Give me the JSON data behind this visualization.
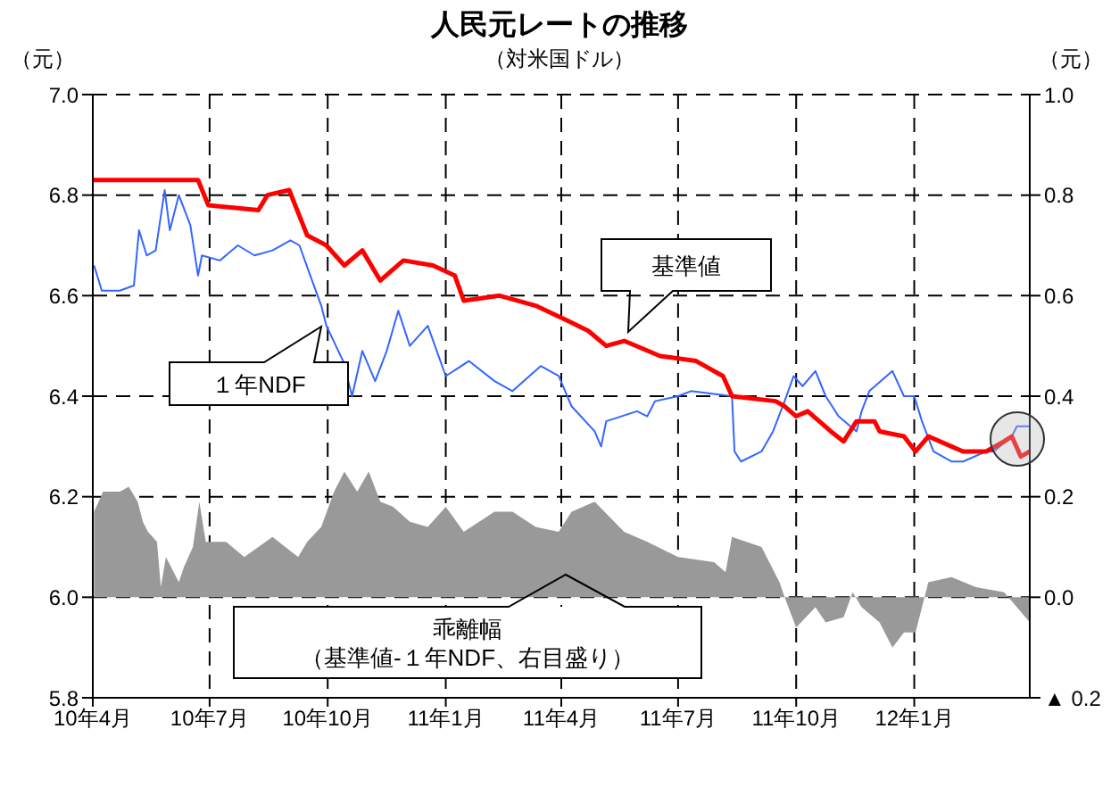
{
  "chart_data": {
    "type": "line",
    "title": "人民元レートの推移",
    "subtitle": "（対米国ドル）",
    "ylabel": "（元）",
    "y2label": "（元）",
    "annotations": [
      "（基準値-１年NDF、右目盛り）"
    ],
    "xlim": [
      "2010-04-01",
      "2012-03-31"
    ],
    "xticks": [
      {
        "value": "2010-04-01",
        "label": "10年4月"
      },
      {
        "value": "2010-07-01",
        "label": "10年7月"
      },
      {
        "value": "2010-10-01",
        "label": "10年10月"
      },
      {
        "value": "2011-01-01",
        "label": "11年1月"
      },
      {
        "value": "2011-04-01",
        "label": "11年4月"
      },
      {
        "value": "2011-07-01",
        "label": "11年7月"
      },
      {
        "value": "2011-10-01",
        "label": "11年10月"
      },
      {
        "value": "2012-01-01",
        "label": "12年1月"
      }
    ],
    "ylim": [
      5.8,
      7.0
    ],
    "yticks": [
      {
        "value": 5.8,
        "label": "5.8"
      },
      {
        "value": 6,
        "label": "6.0"
      },
      {
        "value": 6.2,
        "label": "6.2"
      },
      {
        "value": 6.4,
        "label": "6.4"
      },
      {
        "value": 6.6,
        "label": "6.6"
      },
      {
        "value": 6.8,
        "label": "6.8"
      },
      {
        "value": 7,
        "label": "7.0"
      }
    ],
    "y2lim": [
      -0.2,
      1.0
    ],
    "y2ticks": [
      {
        "value": -0.2,
        "label": "▲ 0.2"
      },
      {
        "value": 0,
        "label": "0.0"
      },
      {
        "value": 0.2,
        "label": "0.2"
      },
      {
        "value": 0.4,
        "label": "0.4"
      },
      {
        "value": 0.6,
        "label": "0.6"
      },
      {
        "value": 0.8,
        "label": "0.8"
      },
      {
        "value": 1,
        "label": "1.0"
      }
    ],
    "grid": true,
    "series": [
      {
        "name": "乖離幅",
        "type": "area",
        "axis": "y2",
        "color": "#999999",
        "x": [
          "2010-04-02",
          "2010-04-09",
          "2010-04-22",
          "2010-04-29",
          "2010-05-06",
          "2010-05-10",
          "2010-05-14",
          "2010-05-21",
          "2010-05-24",
          "2010-05-28",
          "2010-06-07",
          "2010-06-11",
          "2010-06-18",
          "2010-06-23",
          "2010-06-28",
          "2010-07-14",
          "2010-07-28",
          "2010-08-19",
          "2010-09-08",
          "2010-09-15",
          "2010-09-26",
          "2010-10-06",
          "2010-10-14",
          "2010-10-24",
          "2010-11-02",
          "2010-11-11",
          "2010-11-21",
          "2010-12-04",
          "2010-12-18",
          "2011-01-01",
          "2011-01-15",
          "2011-02-08",
          "2011-02-22",
          "2011-03-12",
          "2011-03-30",
          "2011-04-09",
          "2011-04-27",
          "2011-05-20",
          "2011-06-07",
          "2011-07-01",
          "2011-07-29",
          "2011-08-07",
          "2011-08-12",
          "2011-09-04",
          "2011-09-18",
          "2011-09-22",
          "2011-10-01",
          "2011-10-16",
          "2011-10-24",
          "2011-11-07",
          "2011-11-14",
          "2011-11-21",
          "2011-12-05",
          "2011-12-15",
          "2011-12-24",
          "2012-01-02",
          "2012-01-12",
          "2012-01-30",
          "2012-02-18",
          "2012-03-11",
          "2012-03-21",
          "2012-03-31"
        ],
        "values": [
          0.17,
          0.21,
          0.21,
          0.22,
          0.19,
          0.15,
          0.13,
          0.11,
          0.02,
          0.08,
          0.03,
          0.06,
          0.1,
          0.19,
          0.11,
          0.11,
          0.08,
          0.12,
          0.08,
          0.11,
          0.14,
          0.21,
          0.25,
          0.21,
          0.25,
          0.19,
          0.18,
          0.15,
          0.14,
          0.18,
          0.13,
          0.17,
          0.17,
          0.14,
          0.13,
          0.17,
          0.19,
          0.13,
          0.11,
          0.08,
          0.07,
          0.05,
          0.12,
          0.1,
          0.03,
          0.0,
          -0.06,
          -0.02,
          -0.05,
          -0.04,
          0.01,
          -0.02,
          -0.05,
          -0.1,
          -0.07,
          -0.07,
          0.03,
          0.04,
          0.02,
          0.01,
          -0.02,
          -0.05
        ]
      },
      {
        "name": "１年NDF",
        "color": "#3366ff",
        "x": [
          "2010-04-02",
          "2010-04-08",
          "2010-04-22",
          "2010-05-03",
          "2010-05-07",
          "2010-05-13",
          "2010-05-20",
          "2010-05-27",
          "2010-05-31",
          "2010-06-07",
          "2010-06-16",
          "2010-06-22",
          "2010-06-25",
          "2010-07-09",
          "2010-07-23",
          "2010-08-05",
          "2010-08-19",
          "2010-09-02",
          "2010-09-09",
          "2010-09-16",
          "2010-09-26",
          "2010-09-30",
          "2010-10-13",
          "2010-10-20",
          "2010-10-28",
          "2010-11-07",
          "2010-11-16",
          "2010-11-25",
          "2010-12-04",
          "2010-12-18",
          "2011-01-01",
          "2011-01-19",
          "2011-02-08",
          "2011-02-22",
          "2011-03-16",
          "2011-03-30",
          "2011-04-09",
          "2011-04-27",
          "2011-05-02",
          "2011-05-06",
          "2011-05-30",
          "2011-06-07",
          "2011-06-13",
          "2011-07-01",
          "2011-07-11",
          "2011-08-12",
          "2011-08-14",
          "2011-08-19",
          "2011-09-04",
          "2011-09-13",
          "2011-09-22",
          "2011-09-29",
          "2011-10-06",
          "2011-10-16",
          "2011-10-24",
          "2011-11-03",
          "2011-11-17",
          "2011-11-21",
          "2011-11-27",
          "2011-12-15",
          "2011-12-24",
          "2012-01-01",
          "2012-01-07",
          "2012-01-16",
          "2012-01-30",
          "2012-02-08",
          "2012-02-26",
          "2012-03-03",
          "2012-03-17",
          "2012-03-21",
          "2012-03-31"
        ],
        "values": [
          6.66,
          6.61,
          6.61,
          6.62,
          6.73,
          6.68,
          6.69,
          6.81,
          6.73,
          6.8,
          6.74,
          6.64,
          6.68,
          6.67,
          6.7,
          6.68,
          6.69,
          6.71,
          6.7,
          6.65,
          6.58,
          6.54,
          6.47,
          6.4,
          6.49,
          6.43,
          6.49,
          6.57,
          6.5,
          6.54,
          6.44,
          6.47,
          6.43,
          6.41,
          6.46,
          6.44,
          6.38,
          6.33,
          6.3,
          6.35,
          6.37,
          6.36,
          6.39,
          6.4,
          6.41,
          6.4,
          6.29,
          6.27,
          6.29,
          6.33,
          6.39,
          6.44,
          6.42,
          6.45,
          6.4,
          6.36,
          6.33,
          6.37,
          6.41,
          6.45,
          6.4,
          6.4,
          6.35,
          6.29,
          6.27,
          6.27,
          6.29,
          6.29,
          6.32,
          6.34,
          6.34
        ]
      },
      {
        "name": "基準値",
        "color": "#ff0000",
        "x": [
          "2010-04-01",
          "2010-06-22",
          "2010-06-30",
          "2010-08-08",
          "2010-08-15",
          "2010-09-01",
          "2010-09-15",
          "2010-09-30",
          "2010-10-14",
          "2010-10-28",
          "2010-11-11",
          "2010-11-29",
          "2010-12-22",
          "2011-01-08",
          "2011-01-15",
          "2011-02-12",
          "2011-03-12",
          "2011-04-06",
          "2011-04-22",
          "2011-05-06",
          "2011-05-20",
          "2011-06-17",
          "2011-07-15",
          "2011-08-05",
          "2011-08-12",
          "2011-09-15",
          "2011-09-22",
          "2011-10-01",
          "2011-10-10",
          "2011-10-28",
          "2011-11-07",
          "2011-11-17",
          "2011-12-01",
          "2011-12-05",
          "2011-12-24",
          "2012-01-02",
          "2012-01-12",
          "2012-01-30",
          "2012-02-08",
          "2012-02-26",
          "2012-03-11",
          "2012-03-17",
          "2012-03-24",
          "2012-03-31"
        ],
        "values": [
          6.83,
          6.83,
          6.78,
          6.77,
          6.8,
          6.81,
          6.72,
          6.7,
          6.66,
          6.69,
          6.63,
          6.67,
          6.66,
          6.64,
          6.59,
          6.6,
          6.58,
          6.55,
          6.53,
          6.5,
          6.51,
          6.48,
          6.47,
          6.44,
          6.4,
          6.39,
          6.38,
          6.36,
          6.37,
          6.33,
          6.31,
          6.35,
          6.35,
          6.33,
          6.32,
          6.29,
          6.32,
          6.3,
          6.29,
          6.29,
          6.31,
          6.32,
          6.28,
          6.29
        ]
      }
    ]
  }
}
